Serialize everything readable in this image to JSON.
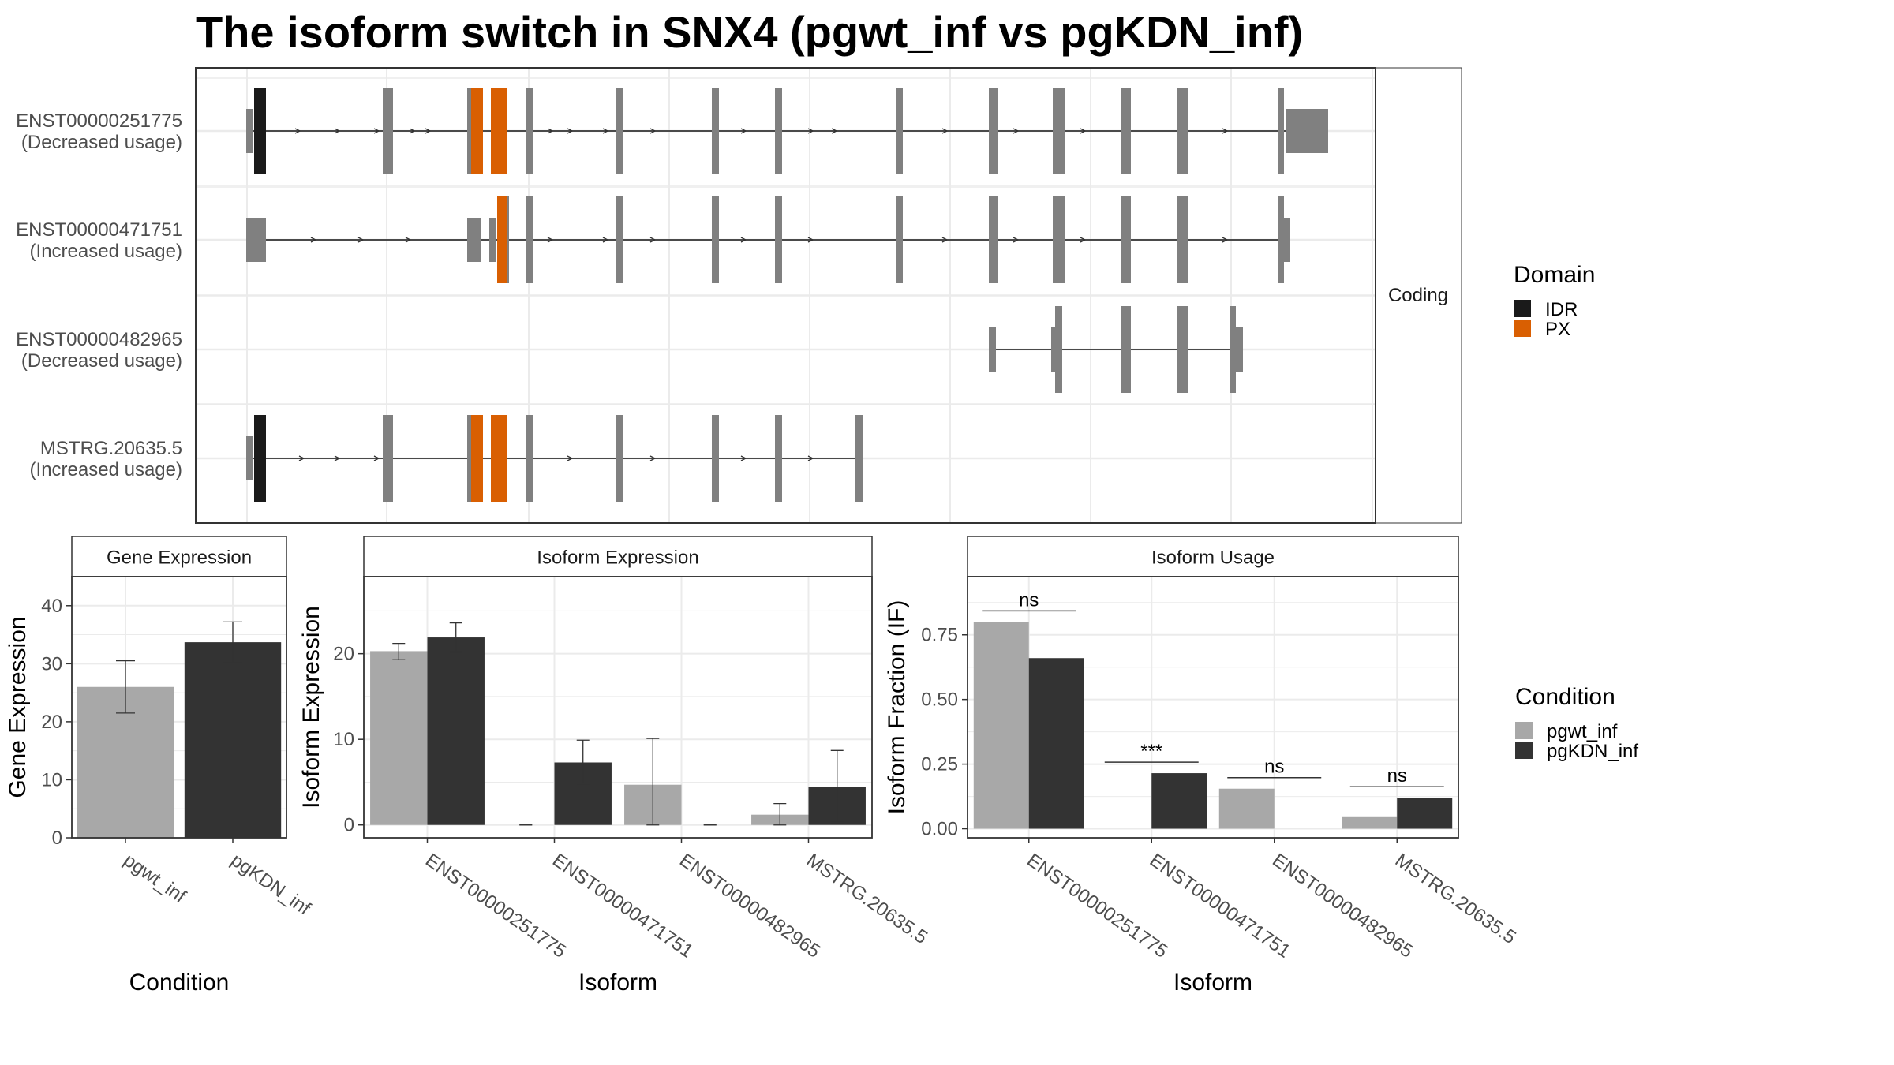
{
  "title": "The isoform switch in SNX4 (pgwt_inf vs pgKDN_inf)",
  "colors": {
    "pgwt_inf": "#A8A8A8",
    "pgKDN_inf": "#333333",
    "exon": "#808080",
    "IDR": "#1a1a1a",
    "PX": "#D95F02",
    "grid": "#EBEBEB"
  },
  "chart_data": [
    {
      "type": "gene_structure",
      "panel_label": "Coding",
      "transcripts": [
        {
          "id": "ENST00000251775",
          "label": "ENST00000251775",
          "usage": "(Decreased usage)"
        },
        {
          "id": "ENST00000471751",
          "label": "ENST00000471751",
          "usage": "(Increased usage)"
        },
        {
          "id": "ENST00000482965",
          "label": "ENST00000482965",
          "usage": "(Decreased usage)"
        },
        {
          "id": "MSTRG.20635.5",
          "label": "MSTRG.20635.5",
          "usage": "(Increased usage)"
        }
      ],
      "legend": {
        "title": "Domain",
        "entries": [
          {
            "name": "IDR",
            "color": "#1a1a1a"
          },
          {
            "name": "PX",
            "color": "#D95F02"
          }
        ]
      }
    },
    {
      "type": "bar",
      "strip": "Gene Expression",
      "xlabel": "Condition",
      "ylabel": "Gene Expression",
      "categories": [
        "pgwt_inf",
        "pgKDN_inf"
      ],
      "values": [
        26.0,
        33.7
      ],
      "errors": [
        [
          21.5,
          30.5
        ],
        [
          30.2,
          37.2
        ]
      ],
      "ylim": [
        0,
        45
      ],
      "yticks": [
        0,
        10,
        20,
        30,
        40
      ]
    },
    {
      "type": "bar",
      "strip": "Isoform Expression",
      "xlabel": "Isoform",
      "ylabel": "Isoform Expression",
      "categories": [
        "ENST00000251775",
        "ENST00000471751",
        "ENST00000482965",
        "MSTRG.20635.5"
      ],
      "series": [
        {
          "name": "pgwt_inf",
          "values": [
            20.3,
            0,
            4.7,
            1.2
          ],
          "errors": [
            [
              19.3,
              21.2
            ],
            [
              0,
              0
            ],
            [
              0,
              10.1
            ],
            [
              0,
              2.5
            ]
          ]
        },
        {
          "name": "pgKDN_inf",
          "values": [
            21.9,
            7.3,
            0,
            4.4
          ],
          "errors": [
            [
              20.2,
              23.6
            ],
            [
              4.8,
              9.9
            ],
            [
              0,
              0
            ],
            [
              0.3,
              8.7
            ]
          ]
        }
      ],
      "ylim": [
        -1.5,
        29
      ],
      "yticks": [
        0,
        10,
        20
      ]
    },
    {
      "type": "bar",
      "strip": "Isoform Usage",
      "xlabel": "Isoform",
      "ylabel": "Isoform Fraction (IF)",
      "categories": [
        "ENST00000251775",
        "ENST00000471751",
        "ENST00000482965",
        "MSTRG.20635.5"
      ],
      "series": [
        {
          "name": "pgwt_inf",
          "values": [
            0.8,
            0,
            0.155,
            0.045
          ]
        },
        {
          "name": "pgKDN_inf",
          "values": [
            0.66,
            0.215,
            0,
            0.12
          ]
        }
      ],
      "significance": [
        "ns",
        "***",
        "ns",
        "ns"
      ],
      "ylim": [
        -0.035,
        0.975
      ],
      "yticks": [
        0.0,
        0.25,
        0.5,
        0.75
      ],
      "ytick_labels": [
        "0.00",
        "0.25",
        "0.50",
        "0.75"
      ]
    }
  ],
  "condition_legend": {
    "title": "Condition",
    "entries": [
      {
        "name": "pgwt_inf",
        "color": "#A8A8A8"
      },
      {
        "name": "pgKDN_inf",
        "color": "#333333"
      }
    ]
  }
}
